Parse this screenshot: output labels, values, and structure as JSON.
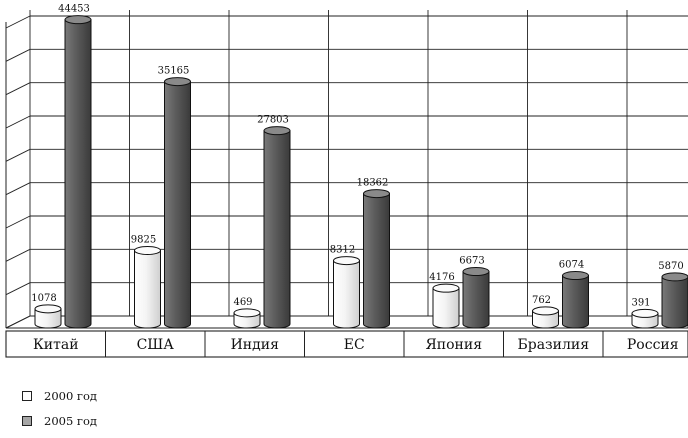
{
  "chart_data": {
    "type": "bar",
    "title": "",
    "xlabel": "",
    "ylabel": "",
    "ylim": [
      0,
      45000
    ],
    "grid": true,
    "legend_position": "bottom-left",
    "categories": [
      "Китай",
      "США",
      "Индия",
      "ЕС",
      "Япония",
      "Бразилия",
      "Россия"
    ],
    "series": [
      {
        "name": "2000 год",
        "values": [
          1078,
          9825,
          469,
          8312,
          4176,
          762,
          391
        ],
        "color": "#f2f2f2"
      },
      {
        "name": "2005 год",
        "values": [
          44453,
          35165,
          27803,
          18362,
          6673,
          6074,
          5870
        ],
        "color": "#6a6a6a"
      }
    ]
  },
  "legend": {
    "items": [
      {
        "label": "2000 год",
        "color": "#ffffff"
      },
      {
        "label": "2005 год",
        "color": "#a6a6a6"
      }
    ]
  }
}
